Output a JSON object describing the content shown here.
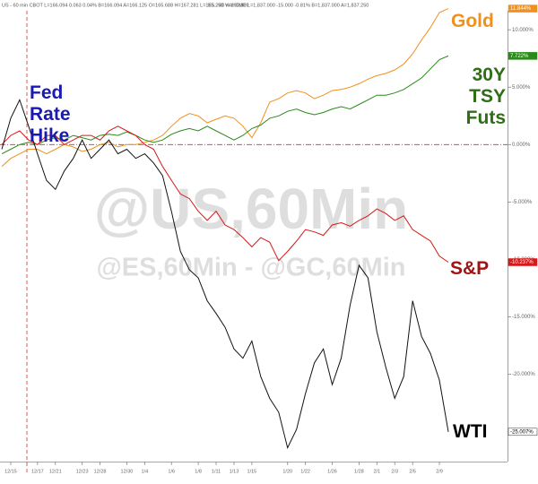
{
  "chart_data": {
    "type": "line",
    "headers": [
      "US - 60 min CBOT L=166.094 0.063 0.04% B=166.094 A=166.125 O=165.688 H=167.281 L=165.250 V=290,809",
      "ES - 60 min CME L=1,837.000 -15.000 -0.81% B=1,837.000 A=1,837.250"
    ],
    "watermarks": [
      "@US,60Min",
      "@ES,60Min - @GC,60Min"
    ],
    "annotations": [
      {
        "text": "Fed Rate Hike",
        "color": "#1a1ab0"
      }
    ],
    "categories": [
      null,
      "12/15",
      null,
      null,
      "12/17",
      null,
      "12/21",
      null,
      null,
      "12/23",
      null,
      "12/28",
      null,
      null,
      "12/30",
      null,
      "1/4",
      null,
      null,
      "1/6",
      null,
      null,
      "1/8",
      null,
      "1/11",
      null,
      "1/13",
      null,
      "1/15",
      null,
      null,
      null,
      "1/20",
      null,
      "1/22",
      null,
      null,
      "1/26",
      null,
      null,
      "1/28",
      null,
      "2/1",
      null,
      "2/3",
      null,
      "2/5",
      null,
      null,
      "2/9",
      null
    ],
    "ylim": [
      -27.6,
      12.2
    ],
    "yticks": [
      {
        "value": 10,
        "label": "10.000%"
      },
      {
        "value": 5,
        "label": "5.000%"
      },
      {
        "value": 0,
        "label": "0.000%"
      },
      {
        "value": -5,
        "label": "-5.000%"
      },
      {
        "value": -10,
        "label": "-10.000%"
      },
      {
        "value": -15,
        "label": "-15.000%"
      },
      {
        "value": -20,
        "label": "-20.000%"
      },
      {
        "value": -25,
        "label": "-25.000%"
      }
    ],
    "series": [
      {
        "name": "Gold",
        "color": "#f0901e",
        "label_color": "#f0901e",
        "values": [
          -1.9,
          -1.2,
          -0.8,
          -0.4,
          -0.4,
          -0.8,
          -0.4,
          0,
          -0.2,
          -0.6,
          -0.4,
          0,
          0.2,
          -0.2,
          0,
          0,
          0.2,
          0.4,
          0.8,
          1.6,
          2.3,
          2.7,
          2.5,
          1.9,
          2.2,
          2.5,
          2.3,
          1.6,
          0.6,
          1.9,
          3.7,
          4.0,
          4.5,
          4.7,
          4.5,
          4.0,
          4.3,
          4.7,
          4.8,
          5.0,
          5.3,
          5.7,
          6.0,
          6.2,
          6.5,
          7.0,
          7.9,
          9.1,
          10.2,
          11.5,
          11.844
        ],
        "value_labels": [
          null,
          null,
          null,
          null,
          null,
          null,
          null,
          null,
          null,
          null,
          null,
          null,
          null,
          null,
          null,
          null,
          null,
          null,
          null,
          null,
          null,
          null,
          null,
          null,
          null,
          null,
          null,
          null,
          null,
          null,
          null,
          null,
          null,
          null,
          null,
          null,
          null,
          null,
          null,
          null,
          null,
          null,
          null,
          null,
          null,
          null,
          null,
          null,
          null,
          null,
          "11.844%"
        ]
      },
      {
        "name": "30Y TSY Futs",
        "color": "#2a8a1a",
        "label_color": "#2e6e14",
        "values": [
          -0.8,
          -0.4,
          0,
          0.2,
          0,
          0.4,
          0.6,
          0.4,
          0.8,
          0.6,
          0.4,
          0.8,
          0.9,
          0.8,
          1.1,
          0.8,
          0.4,
          0.2,
          0.4,
          0.9,
          1.2,
          1.4,
          1.2,
          1.6,
          1.2,
          0.8,
          0.4,
          0.8,
          1.4,
          1.7,
          2.3,
          2.5,
          2.9,
          3.1,
          2.8,
          2.6,
          2.8,
          3.1,
          3.3,
          3.1,
          3.5,
          3.9,
          4.3,
          4.3,
          4.5,
          4.8,
          5.3,
          5.8,
          6.6,
          7.4,
          7.722
        ],
        "value_labels": [
          null,
          null,
          null,
          null,
          null,
          null,
          null,
          null,
          null,
          null,
          null,
          null,
          null,
          null,
          null,
          null,
          null,
          null,
          null,
          null,
          null,
          null,
          null,
          null,
          null,
          null,
          null,
          null,
          null,
          null,
          null,
          null,
          null,
          null,
          null,
          null,
          null,
          null,
          null,
          null,
          null,
          null,
          null,
          null,
          null,
          null,
          null,
          null,
          null,
          null,
          "7.722%"
        ]
      },
      {
        "name": "S&P",
        "color": "#d81818",
        "label_color": "#a01414",
        "values": [
          0,
          0.8,
          1.2,
          0.4,
          0,
          0.8,
          0.8,
          0,
          0.4,
          0.8,
          0.8,
          0.4,
          1.2,
          1.6,
          1.2,
          0.8,
          0,
          -0.4,
          -1.9,
          -3.1,
          -4.3,
          -4.7,
          -5.8,
          -6.6,
          -5.8,
          -7.0,
          -7.4,
          -8.1,
          -8.9,
          -8.1,
          -8.5,
          -10.1,
          -9.3,
          -8.4,
          -7.4,
          -7.6,
          -7.9,
          -7.0,
          -6.8,
          -7.1,
          -6.6,
          -6.2,
          -5.6,
          -6.0,
          -6.6,
          -6.2,
          -7.4,
          -7.9,
          -8.4,
          -9.7,
          -10.237
        ],
        "value_labels": [
          null,
          null,
          null,
          null,
          null,
          null,
          null,
          null,
          null,
          null,
          null,
          null,
          null,
          null,
          null,
          null,
          null,
          null,
          null,
          null,
          null,
          null,
          null,
          null,
          null,
          null,
          null,
          null,
          null,
          null,
          null,
          null,
          null,
          null,
          null,
          null,
          null,
          null,
          null,
          null,
          null,
          null,
          null,
          null,
          null,
          null,
          null,
          null,
          null,
          null,
          "-10.237%"
        ]
      },
      {
        "name": "WTI",
        "color": "#111111",
        "label_color": "#000000",
        "values": [
          -0.4,
          2.3,
          3.9,
          1.6,
          -0.8,
          -3.1,
          -3.9,
          -2.3,
          -1.2,
          0.4,
          -1.2,
          -0.4,
          0.4,
          -0.8,
          -0.4,
          -1.2,
          -0.8,
          -1.6,
          -2.7,
          -5.8,
          -9.3,
          -10.9,
          -11.6,
          -13.6,
          -14.7,
          -15.9,
          -17.8,
          -18.6,
          -17.1,
          -20.2,
          -22.1,
          -23.3,
          -26.4,
          -24.8,
          -21.7,
          -19.0,
          -17.8,
          -20.9,
          -18.6,
          -14.0,
          -10.5,
          -11.6,
          -16.3,
          -19.4,
          -22.1,
          -20.2,
          -13.6,
          -16.7,
          -18.2,
          -20.5,
          -25.007
        ],
        "value_labels": [
          null,
          null,
          null,
          null,
          null,
          null,
          null,
          null,
          null,
          null,
          null,
          null,
          null,
          null,
          null,
          null,
          null,
          null,
          null,
          null,
          null,
          null,
          null,
          null,
          null,
          null,
          null,
          null,
          null,
          null,
          null,
          null,
          null,
          null,
          null,
          null,
          null,
          null,
          null,
          null,
          null,
          null,
          null,
          null,
          null,
          null,
          null,
          null,
          null,
          null,
          "-25.007%"
        ]
      }
    ]
  }
}
